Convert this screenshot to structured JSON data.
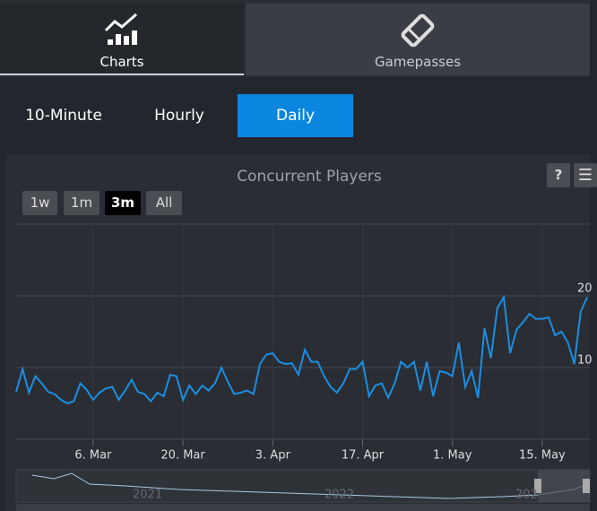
{
  "tabs": [
    "Charts",
    "Gamepasses"
  ],
  "intervals": [
    "10-Minute",
    "Hourly",
    "Daily"
  ],
  "ranges": [
    "1w",
    "1m",
    "3m",
    "All"
  ],
  "help": "?",
  "navigator_labels": [
    "2021",
    "2022",
    "202"
  ],
  "chart_data": {
    "type": "line",
    "title": "Concurrent Players",
    "categories": [
      null,
      null,
      null,
      null,
      null,
      null,
      null,
      null,
      null,
      null,
      null,
      null,
      "6. Mar",
      null,
      null,
      null,
      null,
      null,
      null,
      null,
      null,
      null,
      null,
      null,
      null,
      null,
      "20. Mar",
      null,
      null,
      null,
      null,
      null,
      null,
      null,
      null,
      null,
      null,
      null,
      null,
      null,
      "3. Apr",
      null,
      null,
      null,
      null,
      null,
      null,
      null,
      null,
      null,
      null,
      null,
      null,
      null,
      "17. Apr",
      null,
      null,
      null,
      null,
      null,
      null,
      null,
      null,
      null,
      null,
      null,
      null,
      null,
      "1. May",
      null,
      null,
      null,
      null,
      null,
      null,
      null,
      null,
      null,
      null,
      null,
      null,
      null,
      "15. May",
      null,
      null,
      null,
      null,
      null,
      null,
      null
    ],
    "series": [
      {
        "name": "Concurrent Players",
        "color": "#1a8fe3",
        "values": [
          6.6,
          9.8,
          6.5,
          8.8,
          7.8,
          6.6,
          6.3,
          5.5,
          5.0,
          5.3,
          7.8,
          6.9,
          5.5,
          6.5,
          7.1,
          7.3,
          5.5,
          6.8,
          8.3,
          6.6,
          6.3,
          5.3,
          6.5,
          6.0,
          9.0,
          8.8,
          5.5,
          7.5,
          6.3,
          7.5,
          6.8,
          7.8,
          10.0,
          8.0,
          6.3,
          6.5,
          6.8,
          6.3,
          10.5,
          11.8,
          12.0,
          10.8,
          10.5,
          10.6,
          9.0,
          12.5,
          10.8,
          10.8,
          8.8,
          7.3,
          6.5,
          7.8,
          9.8,
          9.8,
          10.8,
          6.0,
          7.5,
          7.8,
          5.8,
          7.8,
          10.8,
          10.0,
          10.8,
          6.8,
          10.8,
          6.0,
          9.5,
          9.3,
          8.8,
          13.5,
          7.3,
          9.5,
          5.8,
          15.5,
          11.3,
          18.3,
          19.8,
          12.0,
          15.3,
          16.3,
          17.5,
          16.8,
          16.8,
          17.0,
          14.5,
          15.0,
          13.5,
          10.5,
          17.8,
          19.8
        ]
      }
    ],
    "ylim": [
      0,
      30
    ],
    "yticks": [
      10,
      20
    ],
    "grid": true
  }
}
